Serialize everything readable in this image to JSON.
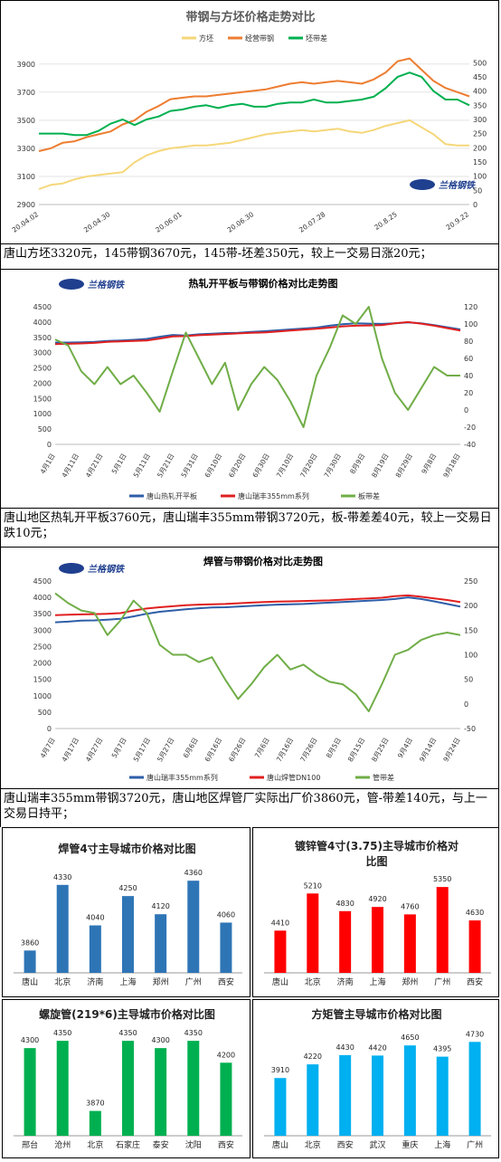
{
  "captions": {
    "c1": "唐山方坯3320元，145带钢3670元，145带-坯差350元，较上一交易日涨20元；",
    "c2": "唐山地区热轧开平板3760元，唐山瑞丰355mm带钢3720元，板-带差差40元，较上一交易日跌10元；",
    "c3": "唐山瑞丰355mm带钢3720元，唐山地区焊管厂实际出厂价3860元，管-带差140元，与上一交易日持平；"
  },
  "logo_text": "兰格钢铁",
  "chart_data": [
    {
      "type": "line",
      "title": "带钢与方坯价格走势对比",
      "x_ticks": [
        "20.04.02",
        "20.04.30",
        "20.06.01",
        "20.06.30",
        "20.07.28",
        "20.8.25",
        "20.9.22"
      ],
      "y_left_ticks": [
        "2900",
        "3100",
        "3300",
        "3500",
        "3700",
        "3900"
      ],
      "y_right_ticks": [
        "0",
        "50",
        "100",
        "150",
        "200",
        "250",
        "300",
        "350",
        "400",
        "450",
        "500"
      ],
      "ylim_left": [
        2900,
        3950
      ],
      "ylim_right": [
        0,
        520
      ],
      "series": [
        {
          "name": "方坯",
          "color": "#f5d77a",
          "axis": "left",
          "values": [
            3010,
            3040,
            3050,
            3080,
            3100,
            3110,
            3120,
            3130,
            3200,
            3250,
            3280,
            3300,
            3310,
            3320,
            3320,
            3330,
            3340,
            3360,
            3380,
            3400,
            3410,
            3420,
            3430,
            3420,
            3430,
            3440,
            3420,
            3410,
            3430,
            3460,
            3480,
            3500,
            3450,
            3400,
            3330,
            3320,
            3320
          ]
        },
        {
          "name": "经营带钢",
          "color": "#ed7d31",
          "axis": "left",
          "values": [
            3280,
            3300,
            3340,
            3350,
            3380,
            3400,
            3420,
            3470,
            3500,
            3560,
            3600,
            3650,
            3660,
            3670,
            3670,
            3680,
            3690,
            3700,
            3710,
            3720,
            3740,
            3760,
            3770,
            3760,
            3770,
            3780,
            3770,
            3760,
            3790,
            3840,
            3920,
            3940,
            3860,
            3780,
            3730,
            3700,
            3670
          ]
        },
        {
          "name": "坯带差",
          "color": "#00b050",
          "axis": "right",
          "values": [
            250,
            250,
            250,
            245,
            245,
            260,
            285,
            300,
            280,
            300,
            310,
            330,
            335,
            345,
            350,
            340,
            350,
            355,
            345,
            345,
            355,
            360,
            360,
            370,
            360,
            360,
            365,
            370,
            380,
            410,
            450,
            465,
            450,
            400,
            370,
            370,
            350
          ]
        }
      ]
    },
    {
      "type": "line",
      "title": "热轧开平板与带钢价格对比走势图",
      "x_ticks": [
        "4月1日",
        "4月11日",
        "4月21日",
        "5月1日",
        "5月11日",
        "5月21日",
        "5月31日",
        "6月10日",
        "6月20日",
        "6月30日",
        "7月10日",
        "7月20日",
        "7月30日",
        "8月9日",
        "8月19日",
        "8月29日",
        "9月8日",
        "9月18日"
      ],
      "y_left_ticks": [
        "0",
        "500",
        "1000",
        "1500",
        "2000",
        "2500",
        "3000",
        "3500",
        "4000",
        "4500"
      ],
      "y_right_ticks": [
        "-40",
        "-20",
        "0",
        "20",
        "40",
        "60",
        "80",
        "100",
        "120"
      ],
      "ylim_left": [
        0,
        4500
      ],
      "ylim_right": [
        -40,
        120
      ],
      "series": [
        {
          "name": "唐山热轧开平板",
          "color": "#2e5ea8",
          "axis": "left",
          "values": [
            3330,
            3330,
            3340,
            3350,
            3380,
            3400,
            3420,
            3450,
            3520,
            3580,
            3560,
            3600,
            3620,
            3640,
            3650,
            3680,
            3700,
            3730,
            3760,
            3790,
            3820,
            3880,
            3930,
            3960,
            3950,
            3940,
            3960,
            3990,
            3960,
            3900,
            3830,
            3760
          ]
        },
        {
          "name": "唐山瑞丰355mm系列",
          "color": "#e02020",
          "axis": "left",
          "values": [
            3280,
            3290,
            3300,
            3320,
            3350,
            3370,
            3380,
            3400,
            3460,
            3530,
            3540,
            3570,
            3590,
            3610,
            3630,
            3650,
            3660,
            3690,
            3720,
            3750,
            3780,
            3820,
            3860,
            3880,
            3890,
            3900,
            3960,
            4000,
            3950,
            3880,
            3800,
            3720
          ]
        },
        {
          "name": "板带差",
          "color": "#70ad47",
          "axis": "right",
          "values": [
            82,
            75,
            45,
            30,
            50,
            30,
            40,
            20,
            -2,
            45,
            90,
            60,
            30,
            55,
            0,
            30,
            50,
            35,
            10,
            -20,
            40,
            72,
            110,
            100,
            120,
            60,
            20,
            0,
            25,
            50,
            40,
            40
          ]
        }
      ]
    },
    {
      "type": "line",
      "title": "焊管与带钢价格对比走势图",
      "x_ticks": [
        "4月7日",
        "4月17日",
        "4月27日",
        "5月7日",
        "5月17日",
        "5月27日",
        "6月6日",
        "6月16日",
        "6月26日",
        "7月6日",
        "7月16日",
        "7月26日",
        "8月5日",
        "8月15日",
        "8月25日",
        "9月4日",
        "9月14日",
        "9月24日"
      ],
      "y_left_ticks": [
        "0",
        "500",
        "1000",
        "1500",
        "2000",
        "2500",
        "3000",
        "3500",
        "4000",
        "4500"
      ],
      "y_right_ticks": [
        "-50",
        "0",
        "50",
        "100",
        "150",
        "200",
        "250"
      ],
      "ylim_left": [
        0,
        4500
      ],
      "ylim_right": [
        -50,
        250
      ],
      "series": [
        {
          "name": "唐山瑞丰355mm系列",
          "color": "#2e5ea8",
          "axis": "left",
          "values": [
            3240,
            3260,
            3290,
            3300,
            3320,
            3350,
            3420,
            3500,
            3560,
            3600,
            3640,
            3670,
            3690,
            3700,
            3720,
            3740,
            3760,
            3780,
            3790,
            3800,
            3820,
            3840,
            3860,
            3880,
            3900,
            3920,
            3950,
            4000,
            3950,
            3880,
            3800,
            3720
          ]
        },
        {
          "name": "唐山焊管DN100",
          "color": "#e02020",
          "axis": "left",
          "values": [
            3460,
            3470,
            3480,
            3490,
            3500,
            3520,
            3600,
            3660,
            3700,
            3730,
            3760,
            3780,
            3790,
            3800,
            3820,
            3840,
            3860,
            3870,
            3880,
            3890,
            3900,
            3910,
            3930,
            3950,
            3970,
            3990,
            4040,
            4060,
            4020,
            3970,
            3920,
            3860
          ]
        },
        {
          "name": "管带差",
          "color": "#70ad47",
          "axis": "right",
          "values": [
            225,
            205,
            190,
            185,
            140,
            170,
            210,
            185,
            120,
            100,
            100,
            85,
            95,
            50,
            10,
            40,
            75,
            100,
            70,
            80,
            60,
            45,
            40,
            20,
            -15,
            40,
            100,
            110,
            130,
            140,
            145,
            140
          ]
        }
      ]
    },
    {
      "type": "bar",
      "title": "焊管4寸主导城市价格对比图",
      "color": "#2e75b6",
      "categories": [
        "唐山",
        "北京",
        "济南",
        "上海",
        "郑州",
        "广州",
        "西安"
      ],
      "values": [
        3860,
        4330,
        4040,
        4250,
        4120,
        4360,
        4060
      ],
      "ylim": [
        3700,
        4400
      ]
    },
    {
      "type": "bar",
      "title": "镀锌管4寸(3.75)主导城市价格对比图",
      "color": "#ff0000",
      "categories": [
        "唐山",
        "北京",
        "济南",
        "上海",
        "郑州",
        "广州",
        "西安"
      ],
      "values": [
        4410,
        5210,
        4830,
        4920,
        4760,
        5350,
        4630
      ],
      "ylim": [
        3500,
        5450
      ]
    },
    {
      "type": "bar",
      "title": "螺旋管(219*6)主导城市价格对比图",
      "color": "#00b050",
      "categories": [
        "邢台",
        "沧州",
        "北京",
        "石家庄",
        "泰安",
        "沈阳",
        "西安"
      ],
      "values": [
        4300,
        4350,
        3870,
        4350,
        4300,
        4350,
        4200
      ],
      "ylim": [
        3700,
        4400
      ]
    },
    {
      "type": "bar",
      "title": "方矩管主导城市价格对比图",
      "color": "#00b0f0",
      "categories": [
        "唐山",
        "北京",
        "西安",
        "武汉",
        "重庆",
        "上海",
        "广州"
      ],
      "values": [
        3910,
        4220,
        4430,
        4420,
        4650,
        4395,
        4730
      ],
      "ylim": [
        2600,
        4900
      ]
    }
  ]
}
